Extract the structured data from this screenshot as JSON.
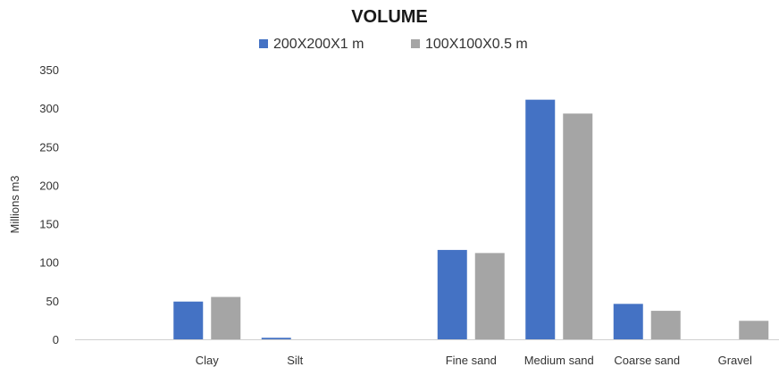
{
  "chart_data": {
    "type": "bar",
    "title": "VOLUME",
    "xlabel": "",
    "ylabel": "Millions m3",
    "ylim": [
      0,
      350
    ],
    "yticks": [
      0,
      50,
      100,
      150,
      200,
      250,
      300,
      350
    ],
    "grid": false,
    "legend_position": "top-center",
    "categories": [
      "",
      "Clay",
      "Silt",
      "",
      "Fine sand",
      "Medium sand",
      "Coarse sand",
      "Gravel"
    ],
    "series": [
      {
        "name": "200X200X1 m",
        "color": "#4472c4",
        "values": [
          0,
          49,
          2,
          0,
          116,
          311,
          46,
          0
        ]
      },
      {
        "name": "100X100X0.5 m",
        "color": "#a5a5a5",
        "values": [
          0,
          55,
          0,
          0,
          112,
          293,
          37,
          24
        ]
      }
    ]
  }
}
